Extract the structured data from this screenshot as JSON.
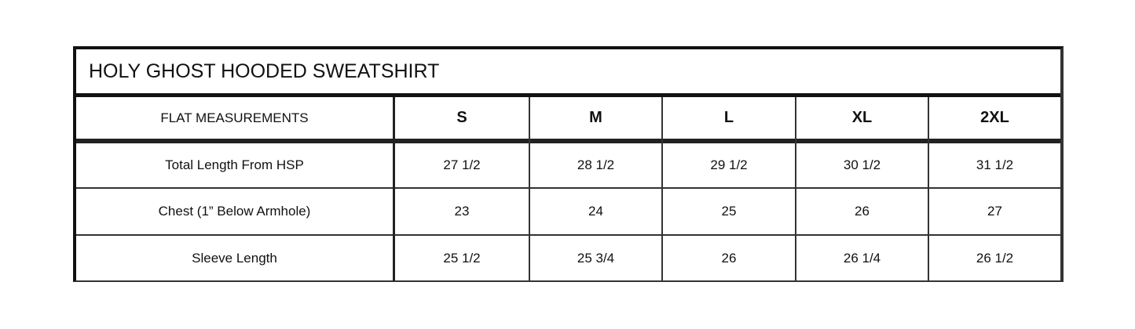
{
  "title": "HOLY GHOST HOODED SWEATSHIRT",
  "header": {
    "label": "FLAT MEASUREMENTS",
    "sizes": [
      "S",
      "M",
      "L",
      "XL",
      "2XL"
    ]
  },
  "rows": [
    {
      "label": "Total Length From HSP",
      "values": [
        "27 1/2",
        "28 1/2",
        "29 1/2",
        "30 1/2",
        "31 1/2"
      ]
    },
    {
      "label": "Chest (1” Below Armhole)",
      "values": [
        "23",
        "24",
        "25",
        "26",
        "27"
      ]
    },
    {
      "label": "Sleeve Length",
      "values": [
        "25 1/2",
        "25 3/4",
        "26",
        "26 1/4",
        "26 1/2"
      ]
    }
  ]
}
